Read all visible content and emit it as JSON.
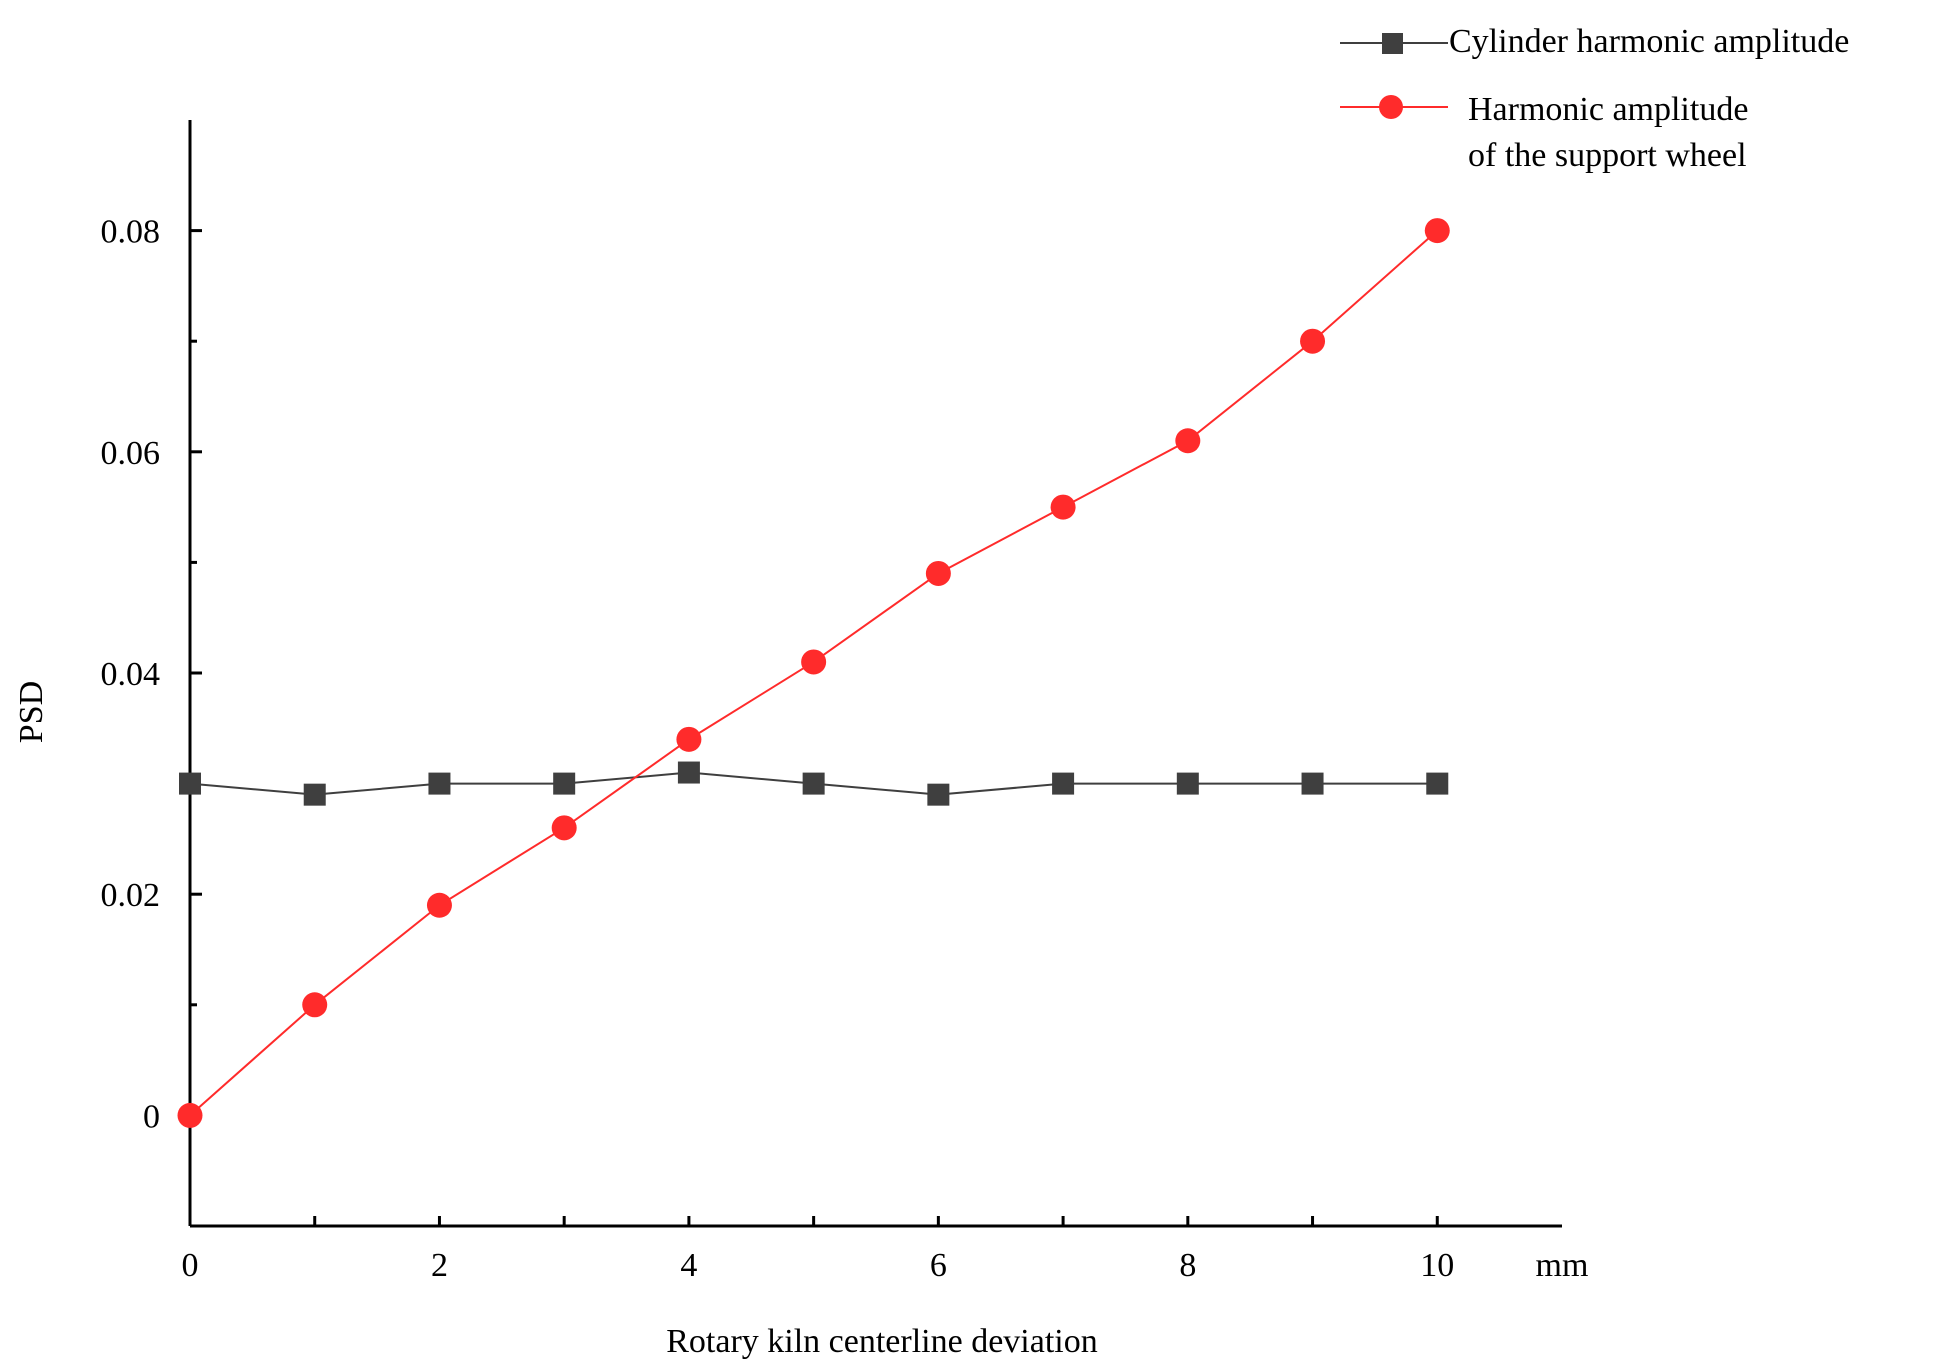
{
  "chart_data": {
    "type": "line",
    "xlabel": "Rotary kiln centerline deviation",
    "x_unit": "mm",
    "ylabel": "PSD",
    "xlim": [
      0,
      11
    ],
    "ylim": [
      -0.01,
      0.09
    ],
    "x_ticks": [
      "0",
      "2",
      "4",
      "6",
      "8",
      "10"
    ],
    "y_ticks": [
      "0",
      "0.02",
      "0.04",
      "0.06",
      "0.08"
    ],
    "grid": false,
    "legend_position": "top-right",
    "x": [
      0,
      1,
      2,
      3,
      4,
      5,
      6,
      7,
      8,
      9,
      10
    ],
    "series": [
      {
        "name": "Cylinder harmonic amplitude",
        "marker": "square",
        "color": "#3f3f3f",
        "values": [
          0.03,
          0.029,
          0.03,
          0.03,
          0.031,
          0.03,
          0.029,
          0.03,
          0.03,
          0.03,
          0.03
        ]
      },
      {
        "name_lines": [
          "Harmonic amplitude",
          "of the support wheel"
        ],
        "marker": "circle",
        "color": "#ff2b2b",
        "values": [
          0.0,
          0.01,
          0.019,
          0.026,
          0.034,
          0.041,
          0.049,
          0.055,
          0.061,
          0.07,
          0.08
        ]
      }
    ]
  }
}
